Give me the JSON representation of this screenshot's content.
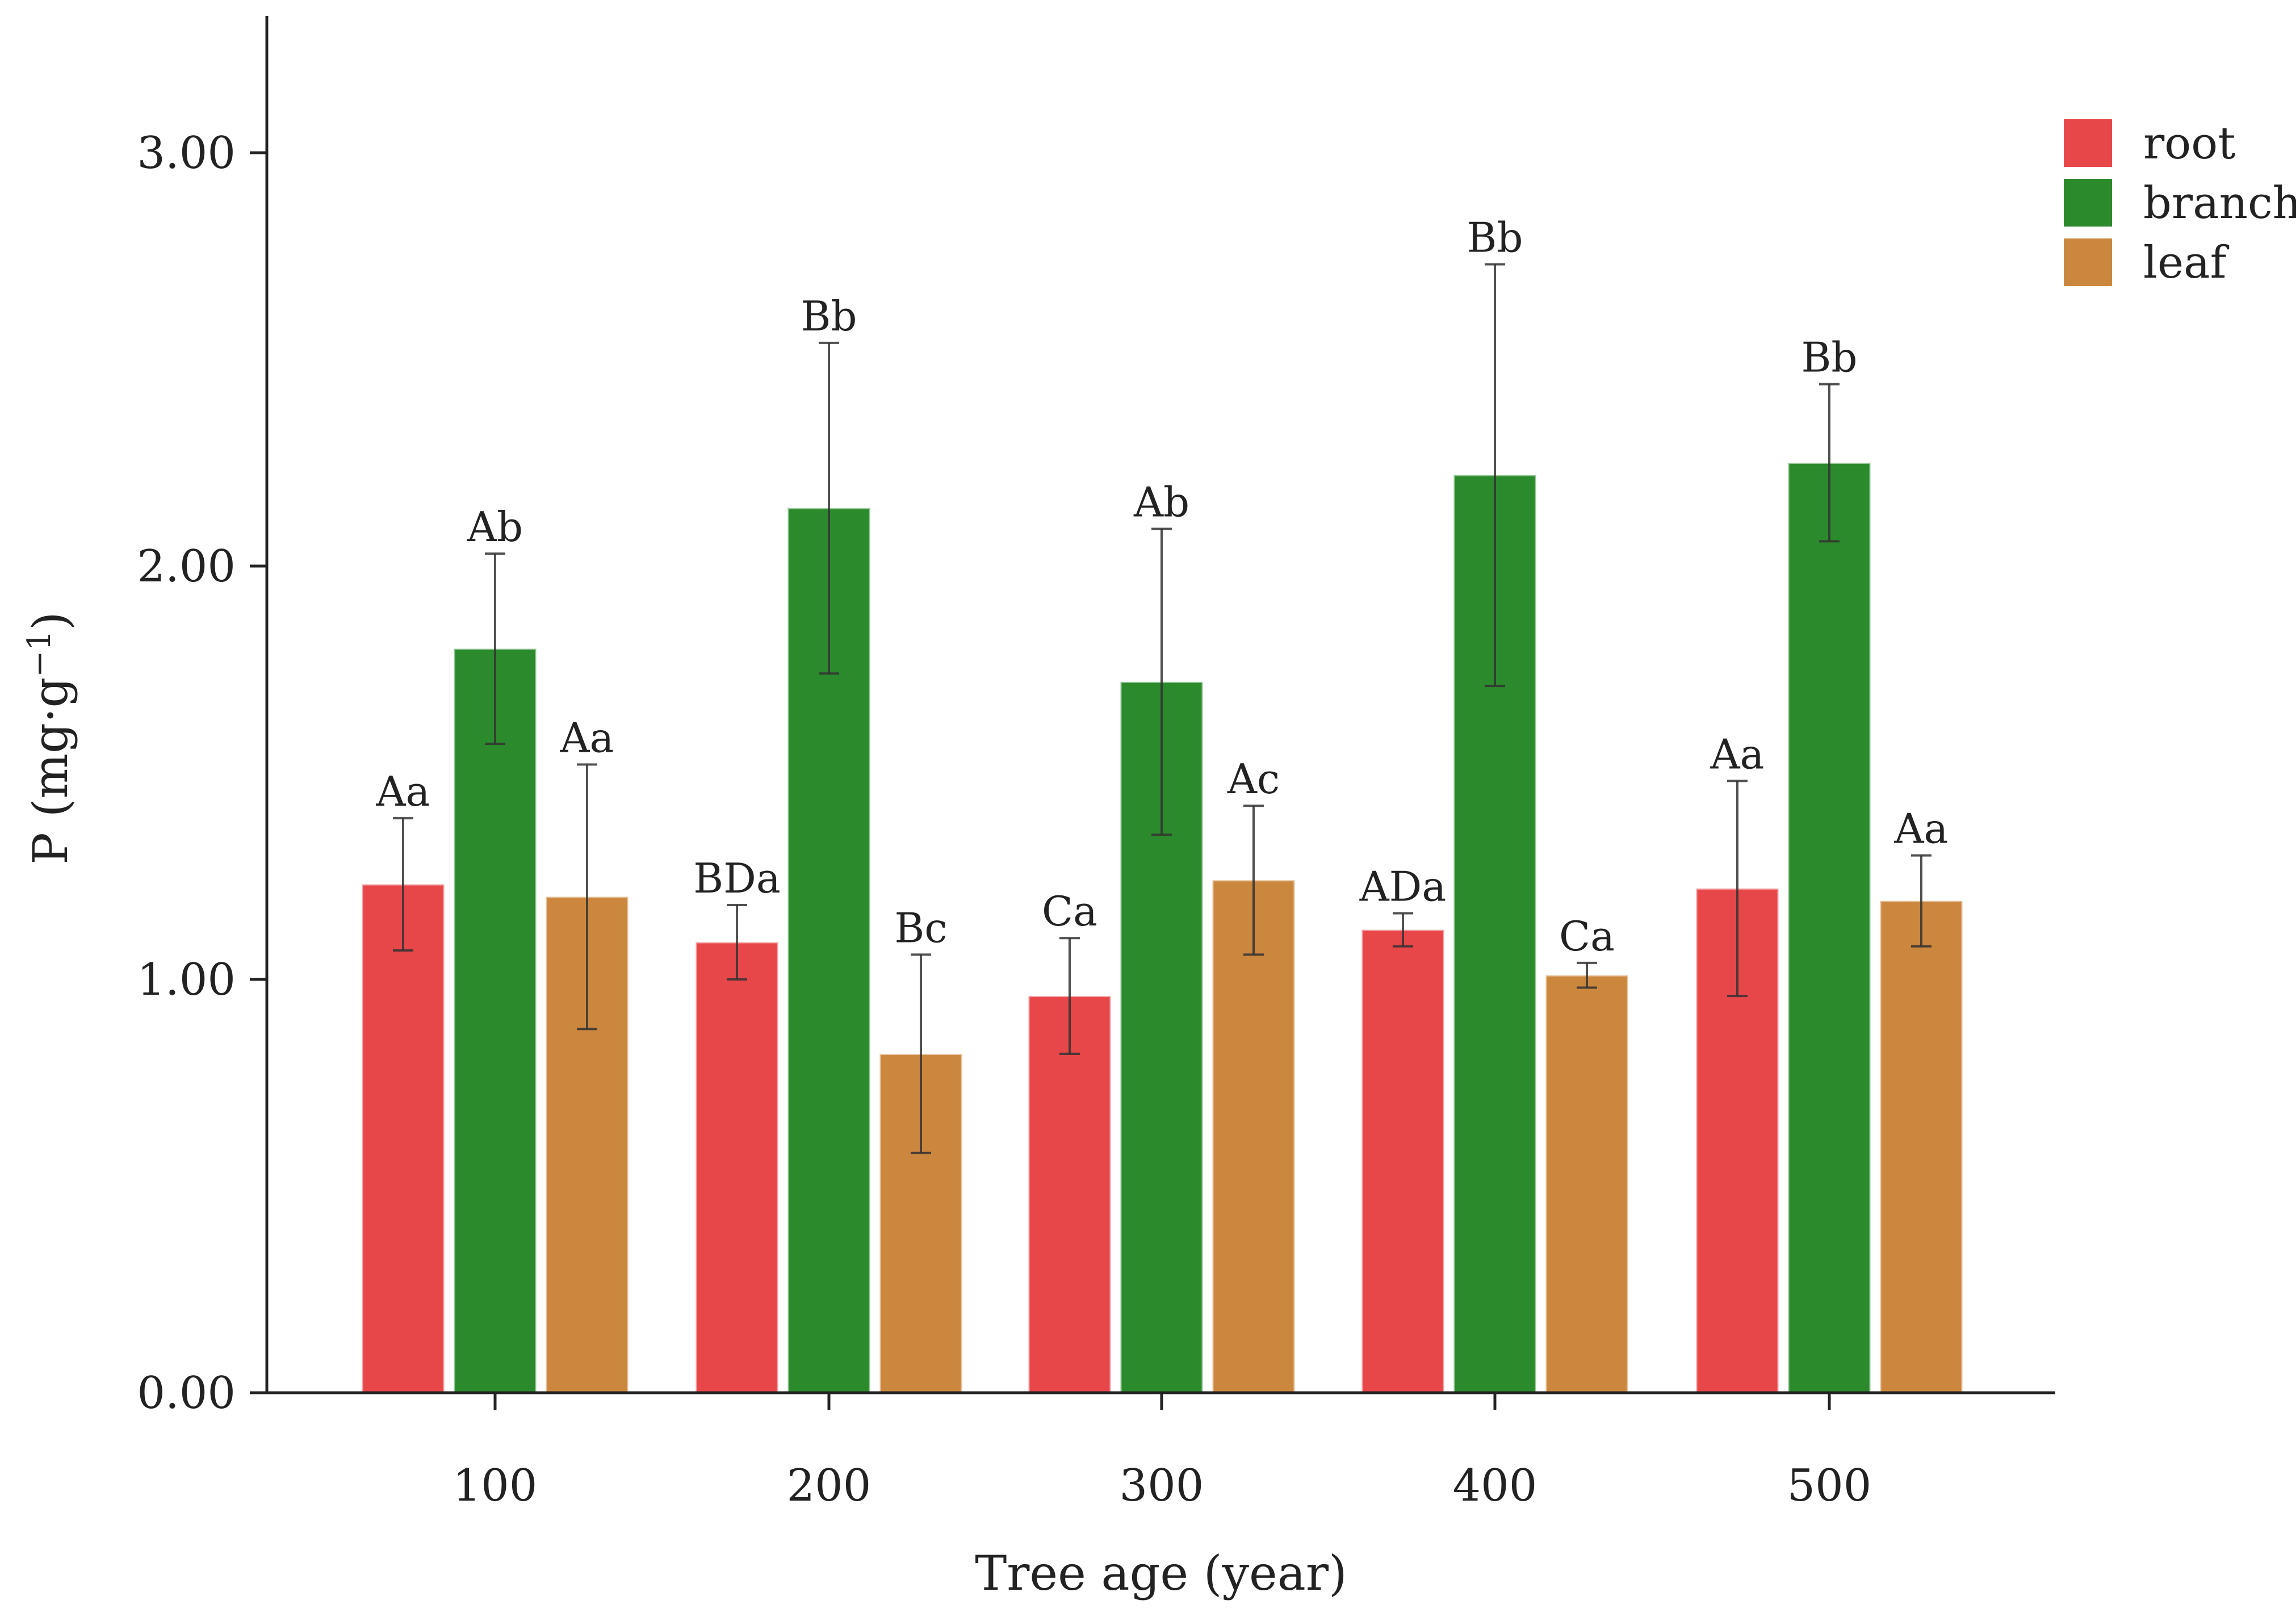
{
  "chart_data": {
    "type": "bar",
    "xlabel": "Tree age (year)",
    "ylabel_main": "P (mg·g",
    "ylabel_sup": "−1",
    "ylabel_close": ")",
    "categories": [
      "100",
      "200",
      "300",
      "400",
      "500"
    ],
    "ylim": [
      0,
      3.3
    ],
    "yticks": [
      0,
      1,
      2,
      3
    ],
    "ytick_labels": [
      "0.00",
      "1.00",
      "2.00",
      "3.00"
    ],
    "grid": false,
    "legend_position": "top-right",
    "series": [
      {
        "name": "root",
        "color": "#E8474A",
        "values": [
          1.23,
          1.09,
          0.96,
          1.12,
          1.22
        ],
        "errors": [
          0.16,
          0.09,
          0.14,
          0.04,
          0.26
        ],
        "labels": [
          "Aa",
          "BDa",
          "Ca",
          "ADa",
          "Aa"
        ]
      },
      {
        "name": "branch",
        "color": "#2B8A2B",
        "values": [
          1.8,
          2.14,
          1.72,
          2.22,
          2.25
        ],
        "errors": [
          0.23,
          0.4,
          0.37,
          0.51,
          0.19
        ],
        "labels": [
          "Ab",
          "Bb",
          "Ab",
          "Bb",
          "Bb"
        ]
      },
      {
        "name": "leaf",
        "color": "#CC873F",
        "values": [
          1.2,
          0.82,
          1.24,
          1.01,
          1.19
        ],
        "errors": [
          0.32,
          0.24,
          0.18,
          0.03,
          0.11
        ],
        "labels": [
          "Aa",
          "Bc",
          "Ac",
          "Ca",
          "Aa"
        ]
      }
    ]
  }
}
